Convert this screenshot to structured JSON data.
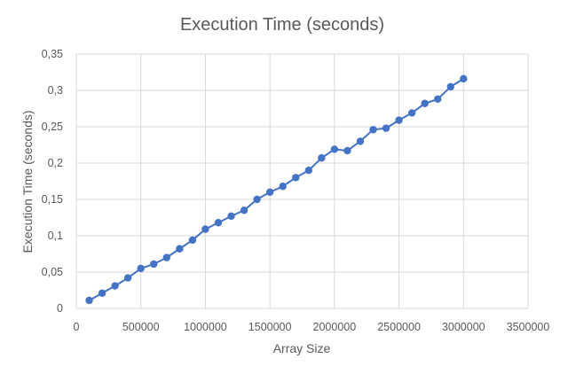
{
  "chart_data": {
    "type": "scatter",
    "title": "Execution Time (seconds)",
    "xlabel": "Array Size",
    "ylabel": "Execution Time (seconds)",
    "xlim": [
      0,
      3500000
    ],
    "ylim": [
      0,
      0.35
    ],
    "x_ticks": [
      0,
      500000,
      1000000,
      1500000,
      2000000,
      2500000,
      3000000,
      3500000
    ],
    "x_tick_labels": [
      "0",
      "500000",
      "1000000",
      "1500000",
      "2000000",
      "2500000",
      "3000000",
      "3500000"
    ],
    "y_ticks": [
      0,
      0.05,
      0.1,
      0.15,
      0.2,
      0.25,
      0.3,
      0.35
    ],
    "y_tick_labels": [
      "0",
      "0,05",
      "0,1",
      "0,15",
      "0,2",
      "0,25",
      "0,3",
      "0,35"
    ],
    "grid": true,
    "legend": "none",
    "series_color": "#4472c4",
    "marker": "circle",
    "connect_points": true,
    "series": [
      {
        "x": [
          100000,
          200000,
          300000,
          400000,
          500000,
          600000,
          700000,
          800000,
          900000,
          1000000,
          1100000,
          1200000,
          1300000,
          1400000,
          1500000,
          1600000,
          1700000,
          1800000,
          1900000,
          2000000,
          2100000,
          2200000,
          2300000,
          2400000,
          2500000,
          2600000,
          2700000,
          2800000,
          2900000,
          3000000
        ],
        "y": [
          0.011,
          0.021,
          0.031,
          0.042,
          0.055,
          0.061,
          0.07,
          0.082,
          0.094,
          0.109,
          0.118,
          0.127,
          0.135,
          0.15,
          0.16,
          0.168,
          0.18,
          0.19,
          0.207,
          0.219,
          0.217,
          0.23,
          0.246,
          0.248,
          0.259,
          0.269,
          0.282,
          0.288,
          0.305,
          0.316
        ]
      }
    ]
  }
}
